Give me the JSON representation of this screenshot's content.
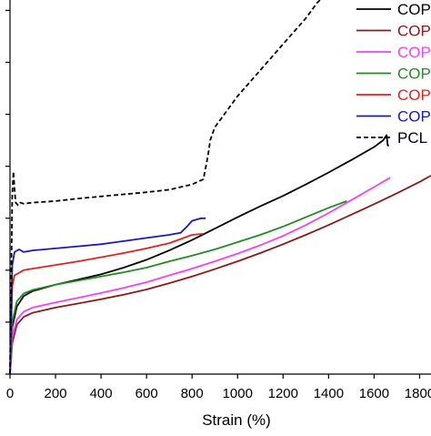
{
  "chart_data": {
    "type": "line",
    "title": "",
    "xlabel": "Strain (%)",
    "ylabel": "",
    "xlim": [
      0,
      1850
    ],
    "xticks": [
      0,
      200,
      400,
      600,
      800,
      1000,
      1200,
      1400,
      1600,
      1800
    ],
    "ylim": [
      0,
      7.2
    ],
    "yticks": [
      0,
      1,
      2,
      3,
      4,
      5,
      6,
      7
    ],
    "grid": false,
    "legend_position": "top-right",
    "series": [
      {
        "name": "COP",
        "color": "#000000",
        "dash": "solid",
        "x": [
          0,
          10,
          30,
          60,
          100,
          200,
          300,
          400,
          500,
          600,
          700,
          800,
          900,
          1000,
          1100,
          1200,
          1300,
          1400,
          1500,
          1600,
          1640,
          1655,
          1660,
          1665
        ],
        "y": [
          0,
          0.9,
          1.3,
          1.5,
          1.6,
          1.72,
          1.82,
          1.92,
          2.05,
          2.2,
          2.38,
          2.58,
          2.8,
          3.02,
          3.23,
          3.43,
          3.65,
          3.88,
          4.12,
          4.37,
          4.5,
          4.6,
          4.4,
          4.4
        ]
      },
      {
        "name": "COP",
        "color": "#8b1a1a",
        "dash": "solid",
        "x": [
          0,
          10,
          30,
          60,
          100,
          200,
          300,
          400,
          500,
          600,
          700,
          800,
          900,
          1000,
          1100,
          1200,
          1300,
          1400,
          1500,
          1600,
          1700,
          1800,
          1850
        ],
        "y": [
          0,
          0.6,
          0.95,
          1.1,
          1.18,
          1.28,
          1.36,
          1.44,
          1.53,
          1.63,
          1.75,
          1.88,
          2.02,
          2.17,
          2.33,
          2.5,
          2.68,
          2.87,
          3.07,
          3.27,
          3.48,
          3.7,
          3.82
        ]
      },
      {
        "name": "COP",
        "color": "#ee44ee",
        "dash": "solid",
        "x": [
          0,
          10,
          30,
          60,
          100,
          200,
          300,
          400,
          500,
          600,
          700,
          800,
          900,
          1000,
          1100,
          1200,
          1300,
          1400,
          1500,
          1600,
          1670
        ],
        "y": [
          0,
          0.7,
          1.05,
          1.2,
          1.28,
          1.38,
          1.47,
          1.56,
          1.66,
          1.77,
          1.9,
          2.03,
          2.17,
          2.32,
          2.48,
          2.66,
          2.87,
          3.1,
          3.35,
          3.6,
          3.78
        ]
      },
      {
        "name": "COP",
        "color": "#228b22",
        "dash": "solid",
        "x": [
          0,
          10,
          30,
          60,
          100,
          200,
          300,
          400,
          500,
          600,
          700,
          800,
          900,
          1000,
          1100,
          1200,
          1300,
          1400,
          1480
        ],
        "y": [
          0,
          1.0,
          1.4,
          1.55,
          1.62,
          1.72,
          1.8,
          1.88,
          1.96,
          2.05,
          2.17,
          2.28,
          2.4,
          2.54,
          2.68,
          2.84,
          3.02,
          3.2,
          3.33
        ]
      },
      {
        "name": "COP",
        "color": "#dd2222",
        "dash": "solid",
        "x": [
          0,
          10,
          20,
          40,
          60,
          100,
          200,
          300,
          400,
          500,
          600,
          700,
          750,
          800,
          850
        ],
        "y": [
          0,
          1.7,
          1.9,
          1.95,
          2.0,
          2.03,
          2.1,
          2.17,
          2.25,
          2.33,
          2.42,
          2.52,
          2.6,
          2.68,
          2.7
        ]
      },
      {
        "name": "COP",
        "color": "#1a1ab8",
        "dash": "solid",
        "x": [
          0,
          10,
          20,
          40,
          60,
          100,
          200,
          300,
          400,
          500,
          600,
          700,
          750,
          780,
          800,
          840,
          860
        ],
        "y": [
          0,
          2.1,
          2.35,
          2.4,
          2.35,
          2.38,
          2.42,
          2.46,
          2.5,
          2.56,
          2.62,
          2.68,
          2.72,
          2.85,
          2.95,
          3.0,
          3.0
        ]
      },
      {
        "name": "PCL",
        "color": "#000000",
        "dash": "dashed",
        "x": [
          0,
          10,
          15,
          20,
          25,
          35,
          45,
          60,
          100,
          200,
          300,
          400,
          500,
          600,
          700,
          800,
          850,
          870,
          880,
          900,
          1000,
          1100,
          1200,
          1300,
          1350,
          1400
        ],
        "y": [
          0,
          3.45,
          3.9,
          3.55,
          3.3,
          3.25,
          3.3,
          3.28,
          3.3,
          3.33,
          3.38,
          3.42,
          3.46,
          3.5,
          3.55,
          3.65,
          3.75,
          4.2,
          4.5,
          4.75,
          5.35,
          5.85,
          6.35,
          6.85,
          7.15,
          7.35
        ]
      }
    ]
  }
}
